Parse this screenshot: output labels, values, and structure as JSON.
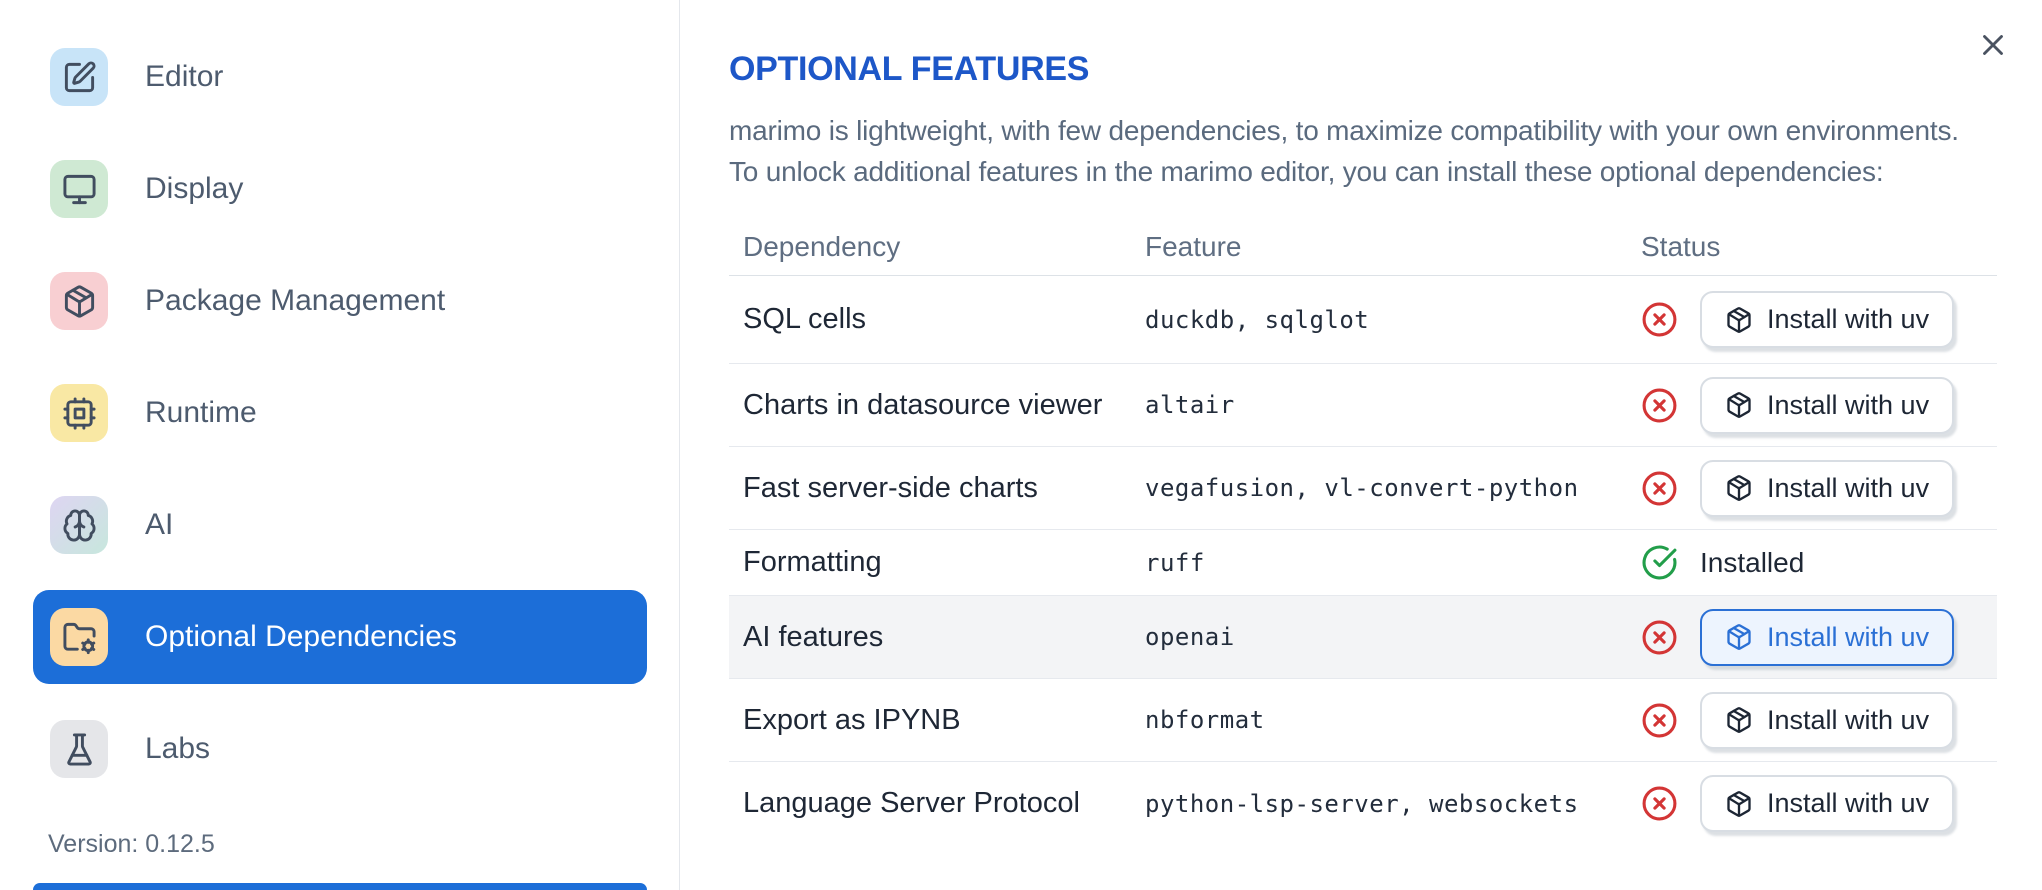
{
  "sidebar": {
    "items": [
      {
        "label": "Editor",
        "icon": "editor-icon",
        "chip_bg": "#c8e4f8",
        "selected": false
      },
      {
        "label": "Display",
        "icon": "display-icon",
        "chip_bg": "#cfe9d3",
        "selected": false
      },
      {
        "label": "Package Management",
        "icon": "package-icon",
        "chip_bg": "#f8cfd2",
        "selected": false
      },
      {
        "label": "Runtime",
        "icon": "runtime-icon",
        "chip_bg": "#f9e8a4",
        "selected": false
      },
      {
        "label": "AI",
        "icon": "ai-icon",
        "chip_bg": "linear-gradient(135deg,#ded5f2,#c7e7dd)",
        "selected": false
      },
      {
        "label": "Optional Dependencies",
        "icon": "optional-dependencies-icon",
        "chip_bg": "#fbd9a3",
        "selected": true
      },
      {
        "label": "Labs",
        "icon": "labs-icon",
        "chip_bg": "#e5e6e9",
        "selected": false
      }
    ],
    "version": "Version: 0.12.5"
  },
  "panel": {
    "title": "OPTIONAL FEATURES",
    "description_line1": "marimo is lightweight, with few dependencies, to maximize compatibility with your own environments.",
    "description_line2": "To unlock additional features in the marimo editor, you can install these optional dependencies:"
  },
  "table": {
    "headers": [
      "Dependency",
      "Feature",
      "Status"
    ],
    "install_button_label": "Install with uv",
    "installed_label": "Installed",
    "rows": [
      {
        "dependency": "SQL cells",
        "feature": "duckdb, sqlglot",
        "installed": false,
        "highlighted": false
      },
      {
        "dependency": "Charts in datasource viewer",
        "feature": "altair",
        "installed": false,
        "highlighted": false
      },
      {
        "dependency": "Fast server-side charts",
        "feature": "vegafusion, vl-convert-python",
        "installed": false,
        "highlighted": false
      },
      {
        "dependency": "Formatting",
        "feature": "ruff",
        "installed": true,
        "highlighted": false
      },
      {
        "dependency": "AI features",
        "feature": "openai",
        "installed": false,
        "highlighted": true
      },
      {
        "dependency": "Export as IPYNB",
        "feature": "nbformat",
        "installed": false,
        "highlighted": false
      },
      {
        "dependency": "Language Server Protocol",
        "feature": "python-lsp-server, websockets",
        "installed": false,
        "highlighted": false
      }
    ]
  },
  "colors": {
    "accent_blue": "#1c6ed8",
    "title_blue": "#1d57c8",
    "error_red": "#d33535",
    "success_green": "#229e4a"
  }
}
